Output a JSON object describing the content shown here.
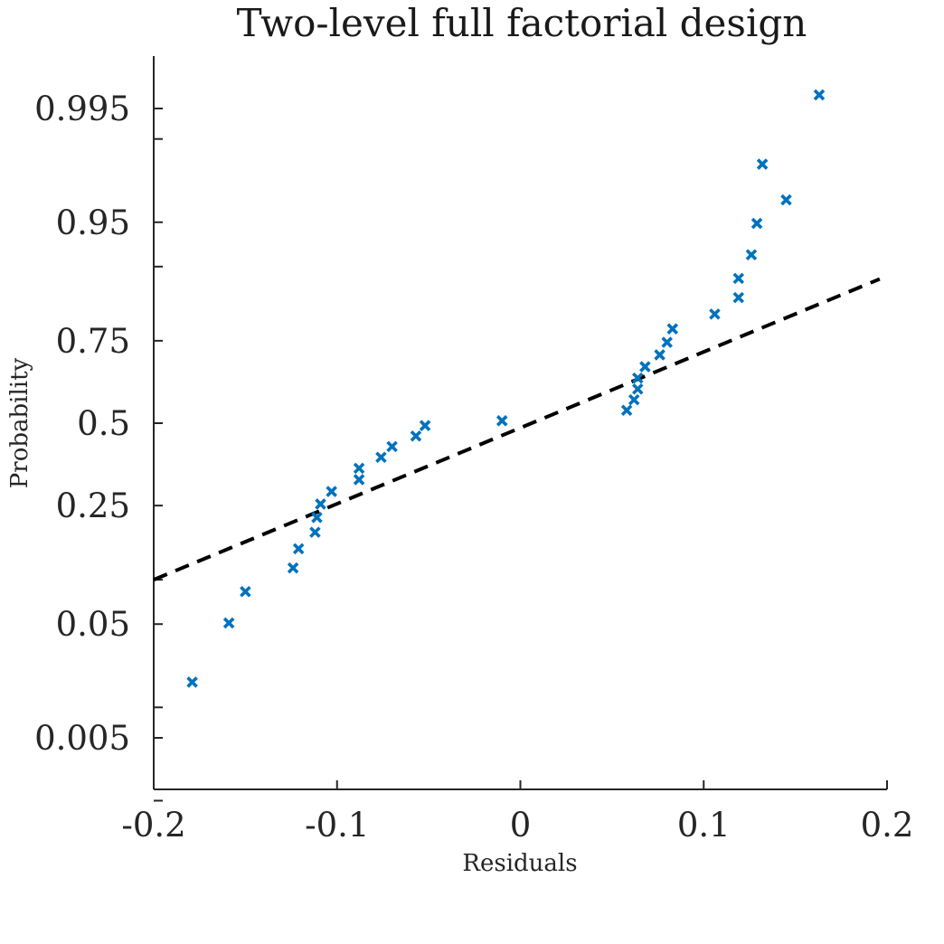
{
  "chart_data": {
    "type": "scatter",
    "title": "Two-level full factorial design",
    "xlabel": "Residuals",
    "ylabel": "Probability",
    "xlim": [
      -0.2,
      0.2
    ],
    "x_ticks": [
      "-0.2",
      "-0.1",
      "0",
      "0.1",
      "0.2"
    ],
    "y_scale": "normal-probability",
    "y_ticks": [
      "0.005",
      "0.05",
      "0.25",
      "0.5",
      "0.75",
      "0.95",
      "0.995"
    ],
    "grid": false,
    "marker": "x",
    "marker_color": "#0072BD",
    "line_color": "#000000",
    "fit_line": {
      "style": "dashed",
      "points": [
        {
          "x": -0.2,
          "y": 0.1
        },
        {
          "x": 0.196,
          "y": 0.881
        }
      ]
    },
    "points": [
      {
        "x": -0.179,
        "y": 0.017
      },
      {
        "x": -0.159,
        "y": 0.051
      },
      {
        "x": -0.15,
        "y": 0.084
      },
      {
        "x": -0.124,
        "y": 0.118
      },
      {
        "x": -0.121,
        "y": 0.152
      },
      {
        "x": -0.112,
        "y": 0.186
      },
      {
        "x": -0.111,
        "y": 0.22
      },
      {
        "x": -0.109,
        "y": 0.254
      },
      {
        "x": -0.103,
        "y": 0.288
      },
      {
        "x": -0.088,
        "y": 0.322
      },
      {
        "x": -0.088,
        "y": 0.356
      },
      {
        "x": -0.076,
        "y": 0.39
      },
      {
        "x": -0.07,
        "y": 0.424
      },
      {
        "x": -0.057,
        "y": 0.458
      },
      {
        "x": -0.052,
        "y": 0.492
      },
      {
        "x": -0.01,
        "y": 0.508
      },
      {
        "x": 0.058,
        "y": 0.542
      },
      {
        "x": 0.062,
        "y": 0.576
      },
      {
        "x": 0.064,
        "y": 0.61
      },
      {
        "x": 0.064,
        "y": 0.644
      },
      {
        "x": 0.068,
        "y": 0.678
      },
      {
        "x": 0.076,
        "y": 0.712
      },
      {
        "x": 0.08,
        "y": 0.746
      },
      {
        "x": 0.083,
        "y": 0.78
      },
      {
        "x": 0.106,
        "y": 0.814
      },
      {
        "x": 0.119,
        "y": 0.848
      },
      {
        "x": 0.119,
        "y": 0.882
      },
      {
        "x": 0.126,
        "y": 0.916
      },
      {
        "x": 0.129,
        "y": 0.949
      },
      {
        "x": 0.132,
        "y": 0.983
      },
      {
        "x": 0.145,
        "y": 0.9662
      },
      {
        "x": 0.163,
        "y": 0.9964
      }
    ]
  }
}
